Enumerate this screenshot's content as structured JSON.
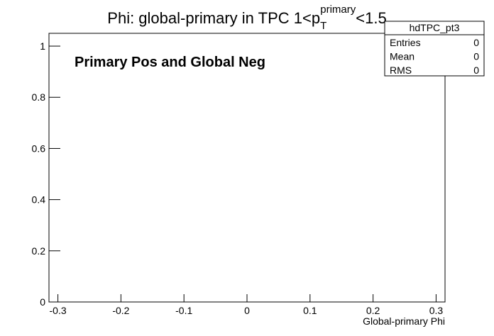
{
  "chart_data": {
    "type": "histogram",
    "title": {
      "text": "Phi: global-primary in TPC 1<p",
      "sub": "T",
      "sup": "primary",
      "tail": "<1.5"
    },
    "annotation": "Primary Pos and Global Neg",
    "x_label": "Global-primary Phi",
    "xlim": [
      -0.31416,
      0.31416
    ],
    "xticks": [
      -0.3,
      -0.2,
      -0.1,
      0,
      0.1,
      0.2,
      0.3
    ],
    "ylim": [
      0,
      1.05
    ],
    "yticks": [
      0,
      0.2,
      0.4,
      0.6,
      0.8,
      1
    ],
    "stats": {
      "name": "hdTPC_pt3",
      "rows": [
        [
          "Entries",
          0
        ],
        [
          "Mean",
          0
        ],
        [
          "RMS",
          0
        ]
      ]
    }
  }
}
